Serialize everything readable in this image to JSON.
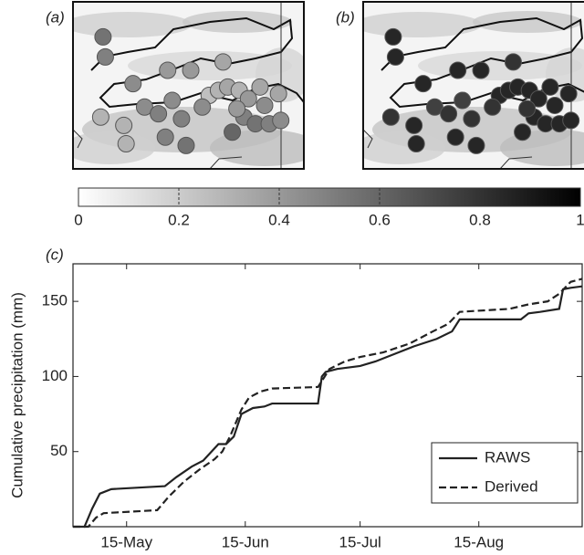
{
  "chart_data": [
    {
      "type": "map",
      "label": "(a)",
      "x": [
        13,
        14,
        26,
        41,
        51,
        65,
        12,
        22,
        23,
        31,
        37,
        43,
        47,
        49,
        59,
        63,
        67,
        72,
        76,
        81,
        83,
        89,
        74,
        79,
        85,
        90,
        69,
        40,
        71,
        56
      ],
      "y": [
        21,
        33,
        49,
        41,
        41,
        36,
        69,
        74,
        85,
        63,
        67,
        59,
        70,
        86,
        56,
        53,
        51,
        53,
        58,
        51,
        62,
        55,
        69,
        73,
        73,
        71,
        78,
        81,
        64,
        63
      ],
      "values": [
        0.55,
        0.5,
        0.45,
        0.4,
        0.4,
        0.35,
        0.3,
        0.3,
        0.3,
        0.45,
        0.5,
        0.45,
        0.5,
        0.55,
        0.25,
        0.3,
        0.35,
        0.3,
        0.4,
        0.35,
        0.45,
        0.35,
        0.5,
        0.55,
        0.5,
        0.45,
        0.6,
        0.5,
        0.4,
        0.45
      ]
    },
    {
      "type": "map",
      "label": "(b)",
      "x": [
        13,
        14,
        26,
        41,
        51,
        65,
        12,
        22,
        23,
        31,
        37,
        43,
        47,
        49,
        59,
        63,
        67,
        72,
        76,
        81,
        83,
        89,
        74,
        79,
        85,
        90,
        69,
        40,
        71,
        56
      ],
      "y": [
        21,
        33,
        49,
        41,
        41,
        36,
        69,
        74,
        85,
        63,
        67,
        59,
        70,
        86,
        56,
        53,
        51,
        53,
        58,
        51,
        62,
        55,
        69,
        73,
        73,
        71,
        78,
        81,
        64,
        63
      ],
      "values": [
        0.85,
        0.85,
        0.85,
        0.85,
        0.85,
        0.8,
        0.8,
        0.85,
        0.85,
        0.75,
        0.8,
        0.75,
        0.8,
        0.85,
        0.85,
        0.85,
        0.85,
        0.85,
        0.85,
        0.85,
        0.85,
        0.85,
        0.85,
        0.85,
        0.85,
        0.85,
        0.85,
        0.85,
        0.8,
        0.8
      ]
    },
    {
      "type": "colorbar",
      "lim": [
        0,
        1
      ],
      "ticks": [
        0,
        0.2,
        0.4,
        0.6,
        0.8,
        1
      ]
    },
    {
      "type": "line",
      "label": "(c)",
      "ylabel": "Cumulative precipitation (mm)",
      "xlim": [
        121,
        254
      ],
      "ylim": [
        0,
        175
      ],
      "xticks": [
        {
          "value": 135,
          "label": "15-May"
        },
        {
          "value": 166,
          "label": "15-Jun"
        },
        {
          "value": 196,
          "label": "15-Jul"
        },
        {
          "value": 227,
          "label": "15-Aug"
        }
      ],
      "yticks": [
        50,
        100,
        150
      ],
      "legend": "lower right",
      "series": [
        {
          "name": "RAWS",
          "color": "#222222",
          "dash": "solid",
          "x": [
            121,
            124,
            126,
            128,
            131,
            145,
            148,
            152,
            155,
            159,
            161,
            163,
            165,
            168,
            171,
            173,
            185,
            186,
            187,
            190,
            193,
            196,
            200,
            205,
            210,
            216,
            220,
            222,
            238,
            240,
            243,
            248,
            249,
            251,
            254
          ],
          "values": [
            0,
            0,
            12,
            22,
            25,
            27,
            33,
            40,
            44,
            55,
            55,
            60,
            75,
            79,
            80,
            82,
            82,
            100,
            103,
            105,
            106,
            107,
            110,
            115,
            120,
            125,
            130,
            138,
            138,
            142,
            143,
            145,
            158,
            159,
            160
          ]
        },
        {
          "name": "Derived",
          "color": "#222222",
          "dash": "dashed",
          "x": [
            121,
            125,
            127,
            129,
            143,
            146,
            150,
            154,
            158,
            160,
            162,
            165,
            167,
            170,
            173,
            185,
            186,
            188,
            192,
            196,
            202,
            209,
            215,
            219,
            222,
            235,
            240,
            245,
            248,
            251,
            254
          ],
          "values": [
            0,
            0,
            6,
            9,
            11,
            20,
            30,
            38,
            45,
            50,
            60,
            78,
            86,
            90,
            92,
            93,
            97,
            105,
            110,
            113,
            116,
            122,
            130,
            135,
            143,
            145,
            148,
            150,
            155,
            163,
            165
          ]
        }
      ]
    }
  ]
}
